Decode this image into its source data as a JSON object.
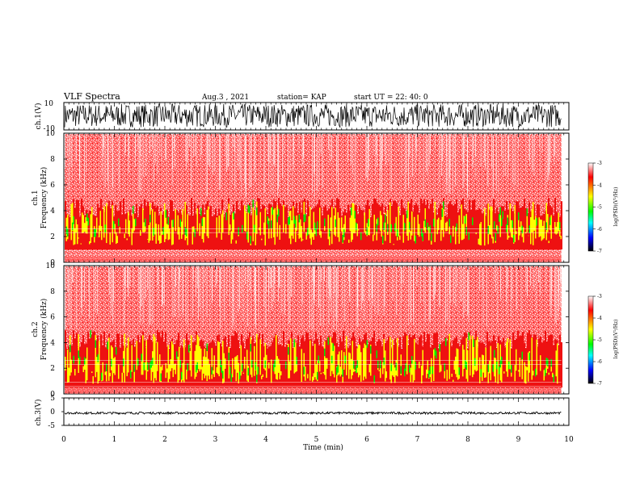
{
  "header": {
    "title": "VLF Spectra",
    "date": "Aug.3 , 2021",
    "station": "station= KAP",
    "start": "start UT = 22: 40: 0"
  },
  "colors": {
    "background_spectrum": "#ffffff",
    "high": "#ee1111",
    "mid": "#ffff00",
    "low": "#00ee00",
    "colorbar": [
      "#ffffff",
      "#ff0000",
      "#ffff00",
      "#00ff00",
      "#00ffff",
      "#0000ff",
      "#000000"
    ]
  },
  "chart_data": [
    {
      "type": "line",
      "ylabel": "ch.1(V)",
      "ylim": [
        -10,
        10
      ],
      "y_ticks": [
        "10",
        "-10"
      ],
      "note": "waveform",
      "amplitude_range": [
        -8,
        9
      ]
    },
    {
      "type": "heatmap",
      "ylabel": "ch.1\nFrequency (kHz)",
      "ylabel_line1": "ch.1",
      "ylabel_line2": "Frequency (kHz)",
      "ylim": [
        0,
        10
      ],
      "y_ticks": [
        "0",
        "2",
        "4",
        "6",
        "8",
        "10"
      ],
      "band_kHz": [
        1,
        5
      ],
      "colorbar": {
        "label": "log(PSD)(V²/Hz)",
        "range": [
          -7,
          -3
        ],
        "ticks": [
          "-3",
          "-4",
          "-5",
          "-6",
          "-7"
        ]
      }
    },
    {
      "type": "heatmap",
      "ylabel_line1": "ch.2",
      "ylabel_line2": "Frequency (kHz)",
      "ylim": [
        0,
        10
      ],
      "y_ticks": [
        "0",
        "2",
        "4",
        "6",
        "8",
        "10"
      ],
      "band_kHz": [
        0.5,
        5
      ],
      "colorbar": {
        "label": "log(PSD)(V²/Hz)",
        "range": [
          -7,
          -3
        ],
        "ticks": [
          "-3",
          "-4",
          "-5",
          "-6",
          "-7"
        ]
      }
    },
    {
      "type": "line",
      "ylabel": "ch.3(V)",
      "ylim": [
        -5,
        5
      ],
      "y_ticks": [
        "5",
        "0",
        "-5"
      ],
      "level": -0.5,
      "amplitude": 0.4
    }
  ],
  "x_axis": {
    "xlabel": "Time (min)",
    "xlim": [
      0,
      10
    ],
    "ticks": [
      "0",
      "1",
      "2",
      "3",
      "4",
      "5",
      "6",
      "7",
      "8",
      "9",
      "10"
    ],
    "data_end": 9.85
  }
}
